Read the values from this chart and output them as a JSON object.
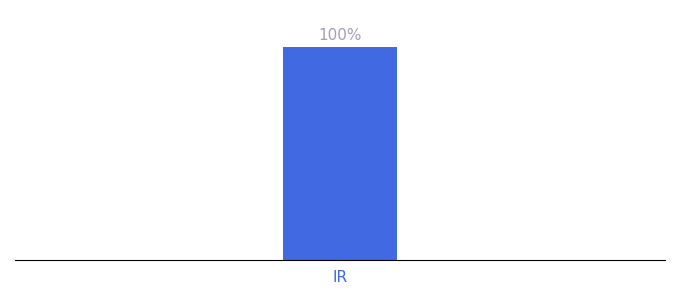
{
  "categories": [
    "IR"
  ],
  "values": [
    100
  ],
  "bar_color": "#4169e1",
  "bar_label": "100%",
  "bar_label_color": "#a0a0b8",
  "xlabel_color": "#4169e1",
  "ylim": [
    0,
    115
  ],
  "figsize": [
    6.8,
    3.0
  ],
  "dpi": 100,
  "background_color": "#ffffff",
  "bar_width": 0.35,
  "xlim": [
    -1.0,
    1.0
  ],
  "label_fontsize": 11,
  "tick_fontsize": 11
}
